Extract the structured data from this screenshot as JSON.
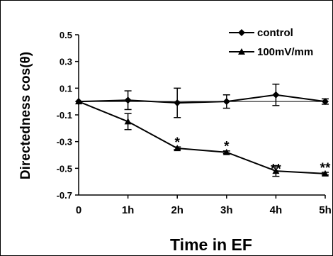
{
  "chart_data": {
    "type": "line",
    "categories": [
      "0",
      "1h",
      "2h",
      "3h",
      "4h",
      "5h"
    ],
    "xlabel": "Time in EF",
    "ylabel": "Directedness cos(θ)",
    "ylim": [
      -0.7,
      0.5
    ],
    "yticks": [
      "0.5",
      "0.3",
      "0.1",
      "-0.1",
      "-0.3",
      "-0.5",
      "-0.7"
    ],
    "reference_line": 0.0,
    "grid": false,
    "legend_position": "top-right",
    "series": [
      {
        "name": "control",
        "marker": "diamond",
        "values": [
          0.0,
          0.01,
          -0.01,
          0.0,
          0.05,
          0.0
        ],
        "error": [
          0.0,
          0.07,
          0.11,
          0.05,
          0.08,
          0.02
        ]
      },
      {
        "name": "100mV/mm",
        "marker": "triangle",
        "values": [
          0.0,
          -0.15,
          -0.35,
          -0.38,
          -0.52,
          -0.54
        ],
        "error": [
          0.0,
          0.06,
          0.01,
          0.01,
          0.04,
          0.01
        ]
      }
    ],
    "annotations": [
      {
        "category": "2h",
        "text": "*"
      },
      {
        "category": "3h",
        "text": "*"
      },
      {
        "category": "4h",
        "text": "**"
      },
      {
        "category": "5h",
        "text": "**"
      }
    ]
  }
}
